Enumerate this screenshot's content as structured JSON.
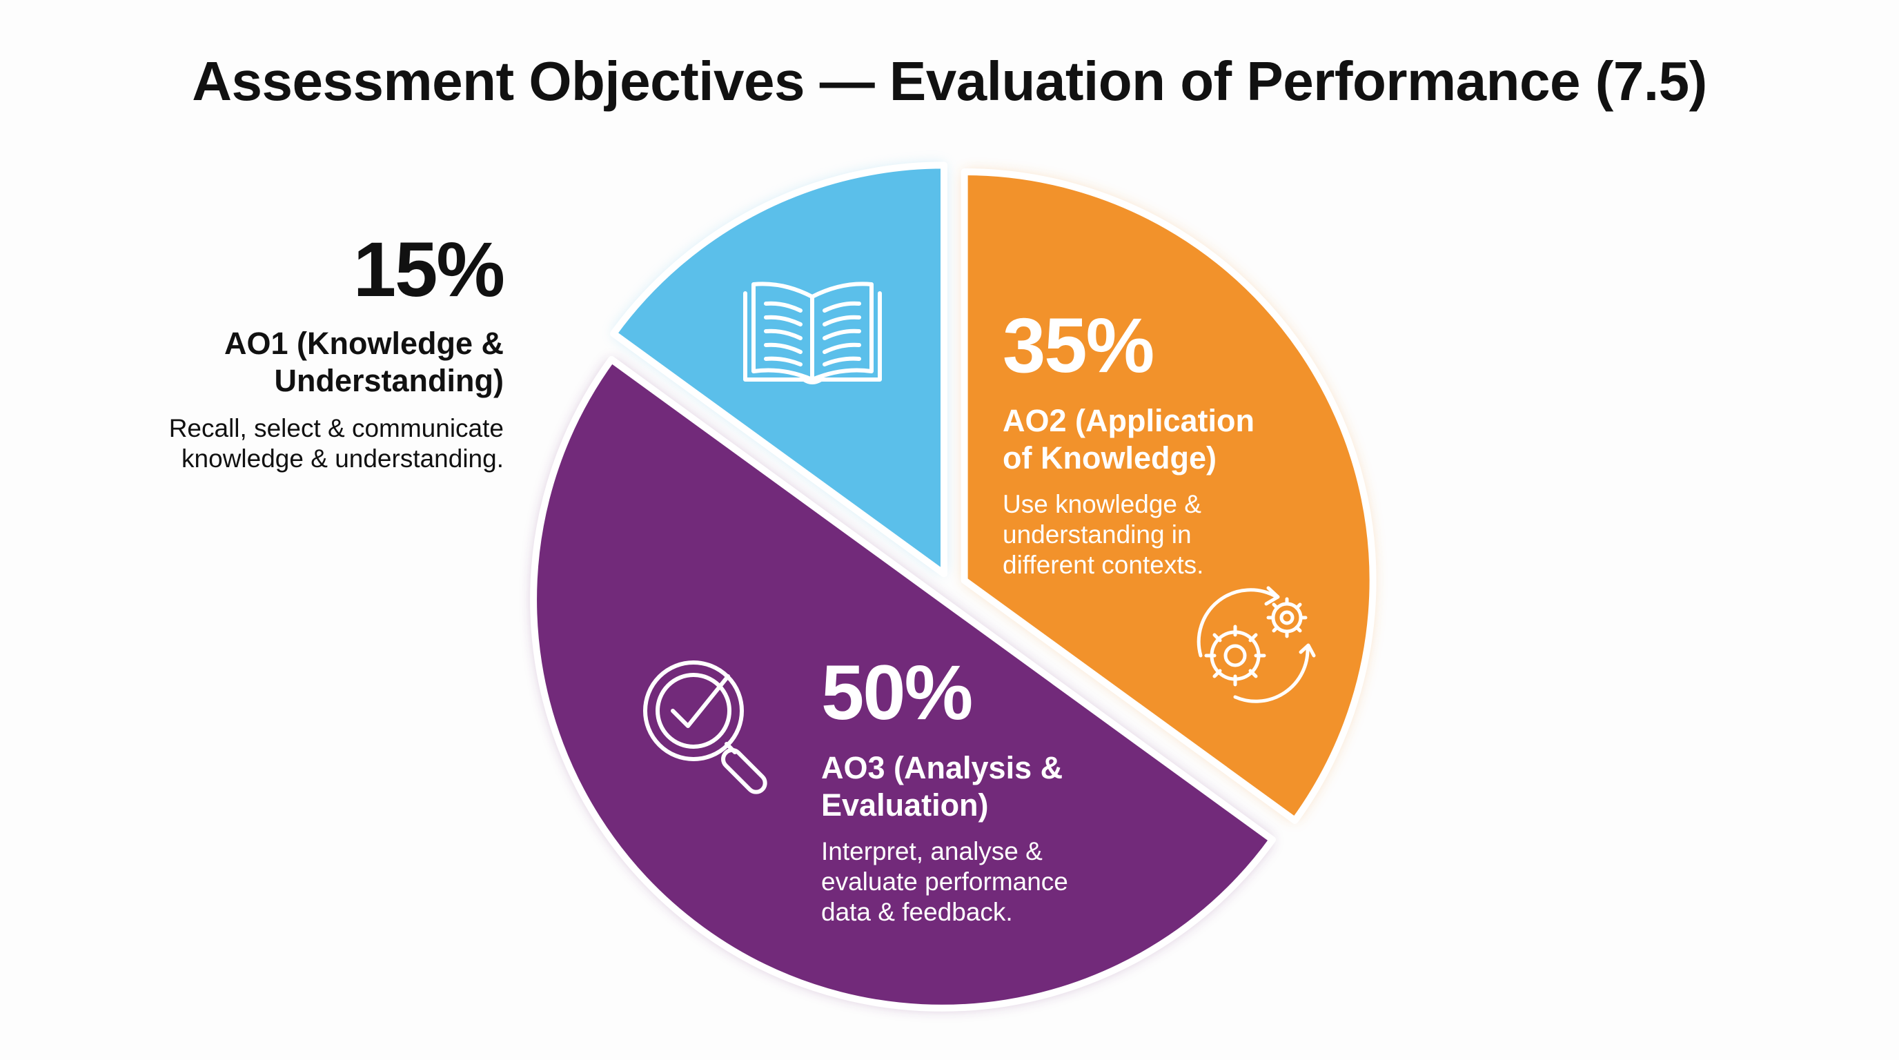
{
  "title": "Assessment Objectives — Evaluation of Performance (7.5)",
  "colors": {
    "ao1": "#5BBFEA",
    "ao2": "#F2922B",
    "ao3": "#722A7A",
    "border": "#ffffff"
  },
  "chart_data": {
    "type": "pie",
    "title": "Assessment Objectives — Evaluation of Performance (7.5)",
    "exploded": true,
    "slices": [
      {
        "id": "ao2",
        "value": 35,
        "percent_label": "35%",
        "label": "AO2 (Application of Knowledge)",
        "label_lines": [
          "AO2 (Application",
          "of Knowledge)"
        ],
        "description_lines": [
          "Use knowledge &",
          "understanding in",
          "different contexts."
        ],
        "color": "#F2922B",
        "icon": "gears-cycle-icon"
      },
      {
        "id": "ao3",
        "value": 50,
        "percent_label": "50%",
        "label": "AO3 (Analysis & Evaluation)",
        "label_lines": [
          "AO3 (Analysis &",
          "Evaluation)"
        ],
        "description_lines": [
          "Interpret, analyse &",
          "evaluate performance",
          "data & feedback."
        ],
        "color": "#722A7A",
        "icon": "magnifier-check-icon"
      },
      {
        "id": "ao1",
        "value": 15,
        "percent_label": "15%",
        "label": "AO1 (Knowledge & Understanding)",
        "label_lines": [
          "AO1 (Knowledge &",
          "Understanding)"
        ],
        "description_lines": [
          "Recall, select & communicate",
          "knowledge & understanding."
        ],
        "color": "#5BBFEA",
        "icon": "open-book-icon"
      }
    ]
  }
}
